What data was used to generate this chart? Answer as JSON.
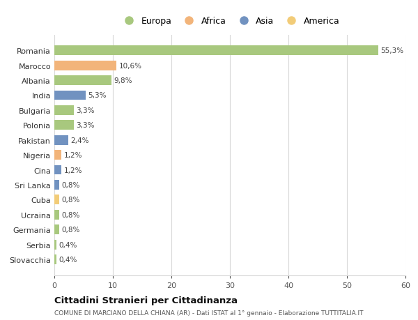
{
  "countries": [
    "Romania",
    "Marocco",
    "Albania",
    "India",
    "Bulgaria",
    "Polonia",
    "Pakistan",
    "Nigeria",
    "Cina",
    "Sri Lanka",
    "Cuba",
    "Ucraina",
    "Germania",
    "Serbia",
    "Slovacchia"
  ],
  "values": [
    55.3,
    10.6,
    9.8,
    5.3,
    3.3,
    3.3,
    2.4,
    1.2,
    1.2,
    0.8,
    0.8,
    0.8,
    0.8,
    0.4,
    0.4
  ],
  "labels": [
    "55,3%",
    "10,6%",
    "9,8%",
    "5,3%",
    "3,3%",
    "3,3%",
    "2,4%",
    "1,2%",
    "1,2%",
    "0,8%",
    "0,8%",
    "0,8%",
    "0,8%",
    "0,4%",
    "0,4%"
  ],
  "continents": [
    "Europa",
    "Africa",
    "Europa",
    "Asia",
    "Europa",
    "Europa",
    "Asia",
    "Africa",
    "Asia",
    "Asia",
    "America",
    "Europa",
    "Europa",
    "Europa",
    "Europa"
  ],
  "colors": {
    "Europa": "#a8c87e",
    "Africa": "#f2b47a",
    "Asia": "#7192c0",
    "America": "#f2cc78"
  },
  "xlim": [
    0,
    60
  ],
  "xticks": [
    0,
    10,
    20,
    30,
    40,
    50,
    60
  ],
  "title": "Cittadini Stranieri per Cittadinanza",
  "subtitle": "COMUNE DI MARCIANO DELLA CHIANA (AR) - Dati ISTAT al 1° gennaio - Elaborazione TUTTITALIA.IT",
  "background_color": "#ffffff",
  "grid_color": "#d8d8d8",
  "bar_height": 0.65,
  "legend_order": [
    "Europa",
    "Africa",
    "Asia",
    "America"
  ]
}
